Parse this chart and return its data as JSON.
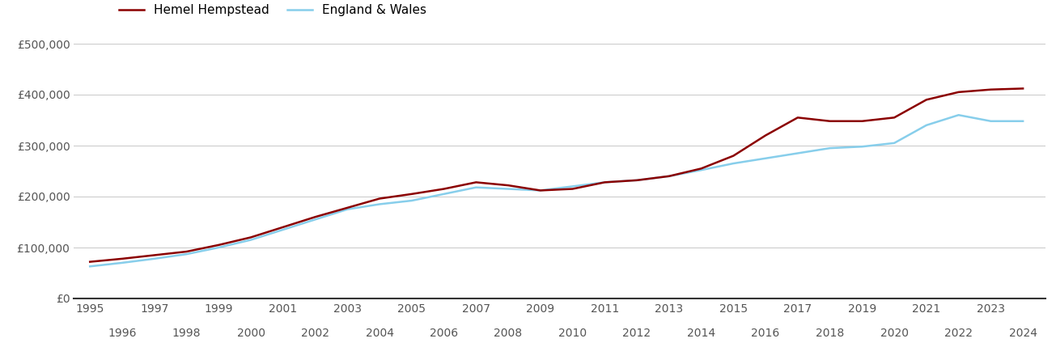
{
  "hemel_years": [
    1995,
    1996,
    1997,
    1998,
    1999,
    2000,
    2001,
    2002,
    2003,
    2004,
    2005,
    2006,
    2007,
    2008,
    2009,
    2010,
    2011,
    2012,
    2013,
    2014,
    2015,
    2016,
    2017,
    2018,
    2019,
    2020,
    2021,
    2022,
    2023,
    2024
  ],
  "hemel_prices": [
    72000,
    78000,
    85000,
    92000,
    105000,
    120000,
    140000,
    160000,
    178000,
    196000,
    205000,
    215000,
    228000,
    222000,
    212000,
    215000,
    228000,
    232000,
    240000,
    255000,
    280000,
    320000,
    355000,
    348000,
    348000,
    355000,
    390000,
    405000,
    410000,
    412000
  ],
  "ew_years": [
    1995,
    1996,
    1997,
    1998,
    1999,
    2000,
    2001,
    2002,
    2003,
    2004,
    2005,
    2006,
    2007,
    2008,
    2009,
    2010,
    2011,
    2012,
    2013,
    2014,
    2015,
    2016,
    2017,
    2018,
    2019,
    2020,
    2021,
    2022,
    2023,
    2024
  ],
  "ew_prices": [
    63000,
    70000,
    78000,
    87000,
    100000,
    115000,
    135000,
    155000,
    175000,
    185000,
    192000,
    205000,
    218000,
    215000,
    212000,
    220000,
    228000,
    232000,
    240000,
    252000,
    265000,
    275000,
    285000,
    295000,
    298000,
    305000,
    340000,
    360000,
    348000,
    348000
  ],
  "hemel_color": "#8B0000",
  "ew_color": "#87CEEB",
  "hemel_label": "Hemel Hempstead",
  "ew_label": "England & Wales",
  "ylim": [
    0,
    500000
  ],
  "yticks": [
    0,
    100000,
    200000,
    300000,
    400000,
    500000
  ],
  "ytick_labels": [
    "£0",
    "£100,000",
    "£200,000",
    "£300,000",
    "£400,000",
    "£500,000"
  ],
  "xlim_start": 1994.5,
  "xlim_end": 2024.7,
  "odd_years": [
    1995,
    1997,
    1999,
    2001,
    2003,
    2005,
    2007,
    2009,
    2011,
    2013,
    2015,
    2017,
    2019,
    2021,
    2023
  ],
  "even_years": [
    1996,
    1998,
    2000,
    2002,
    2004,
    2006,
    2008,
    2010,
    2012,
    2014,
    2016,
    2018,
    2020,
    2022,
    2024
  ],
  "grid_color": "#cccccc",
  "background_color": "#ffffff",
  "line_width": 1.8
}
